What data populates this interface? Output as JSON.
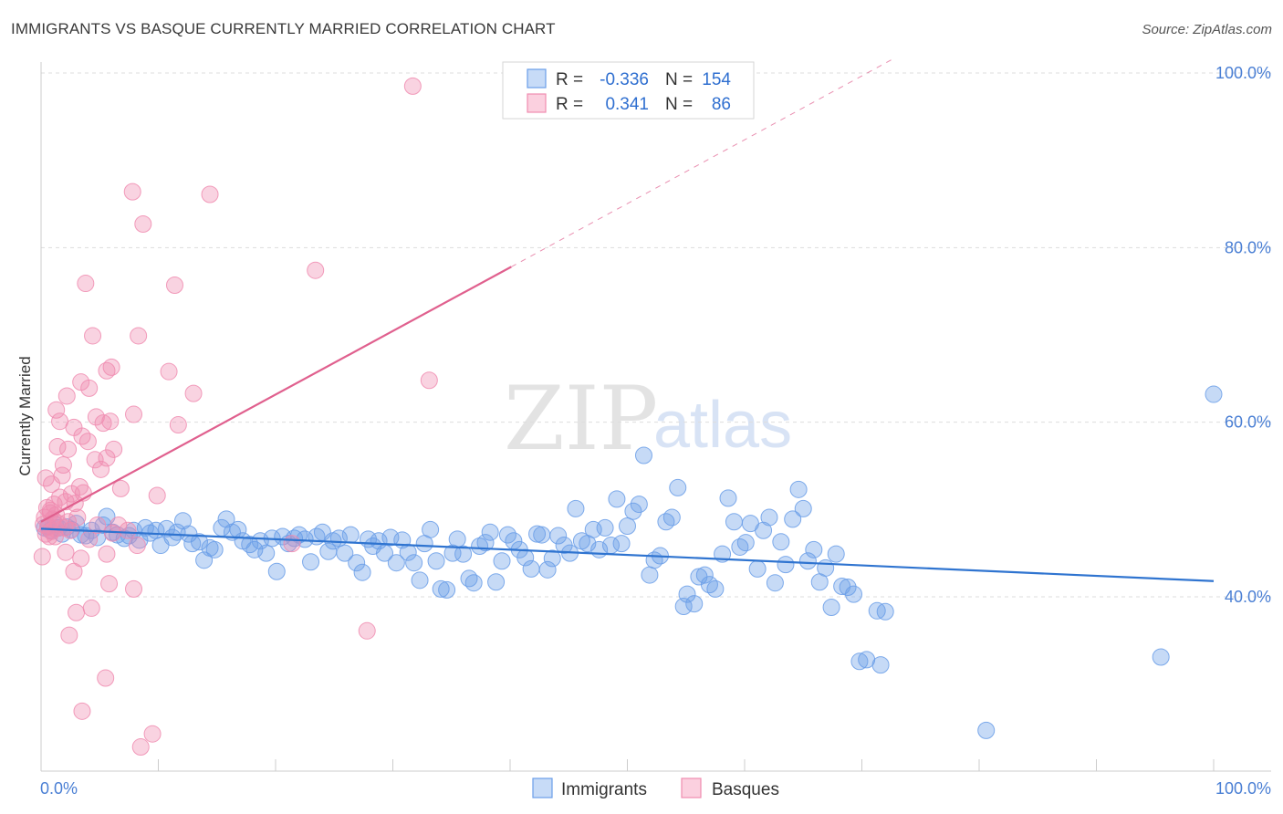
{
  "header": {
    "title": "IMMIGRANTS VS BASQUE CURRENTLY MARRIED CORRELATION CHART",
    "source": "Source: ZipAtlas.com"
  },
  "watermark": {
    "zip": "ZIP",
    "atlas": "atlas"
  },
  "colors": {
    "immigrants": "#6a9ee8",
    "immigrants_line": "#2f74d0",
    "basques": "#f08cb0",
    "basques_line": "#e0608e",
    "axis_label": "#4a7fd4"
  },
  "legend": {
    "rows": [
      {
        "r_label": "R =",
        "r_value": "-0.336",
        "n_label": "N =",
        "n_value": "154"
      },
      {
        "r_label": "R =",
        "r_value": "0.341",
        "n_label": "N =",
        "n_value": "86"
      }
    ]
  },
  "bottom_legend": {
    "immigrants": "Immigrants",
    "basques": "Basques"
  },
  "chart_data": {
    "type": "scatter",
    "title": "IMMIGRANTS VS BASQUE CURRENTLY MARRIED CORRELATION CHART",
    "xlabel": "",
    "ylabel": "Currently Married",
    "xlim": [
      0,
      100
    ],
    "ylim": [
      20,
      103
    ],
    "x_tick_labels": [
      "0.0%",
      "100.0%"
    ],
    "y_ticks": [
      40,
      60,
      80,
      100
    ],
    "y_tick_labels": [
      "40.0%",
      "60.0%",
      "80.0%",
      "100.0%"
    ],
    "grid": true,
    "series": [
      {
        "name": "Immigrants",
        "r": -0.336,
        "n": 154,
        "trend": {
          "x0": 0,
          "y0": 47.8,
          "x1": 100,
          "y1": 41.8,
          "dashed_from": null
        },
        "points": [
          [
            0.3,
            47.9
          ],
          [
            0.6,
            48.1
          ],
          [
            0.8,
            47.6
          ],
          [
            1.2,
            48.3
          ],
          [
            1.5,
            47.9
          ],
          [
            1.8,
            47.2
          ],
          [
            2.2,
            48.0
          ],
          [
            2.6,
            47.7
          ],
          [
            3.0,
            48.4
          ],
          [
            3.4,
            47.1
          ],
          [
            3.8,
            47.0
          ],
          [
            4.3,
            47.6
          ],
          [
            4.8,
            46.8
          ],
          [
            5.3,
            48.2
          ],
          [
            5.6,
            49.2
          ],
          [
            6.1,
            47.4
          ],
          [
            6.5,
            47.1
          ],
          [
            7.1,
            46.7
          ],
          [
            7.5,
            47.0
          ],
          [
            7.9,
            47.6
          ],
          [
            8.4,
            46.5
          ],
          [
            8.9,
            47.9
          ],
          [
            9.3,
            47.3
          ],
          [
            9.8,
            47.6
          ],
          [
            10.2,
            45.9
          ],
          [
            10.7,
            47.8
          ],
          [
            11.2,
            46.8
          ],
          [
            11.6,
            47.4
          ],
          [
            12.1,
            48.7
          ],
          [
            12.6,
            47.2
          ],
          [
            12.9,
            46.1
          ],
          [
            13.5,
            46.3
          ],
          [
            13.9,
            44.2
          ],
          [
            14.4,
            45.6
          ],
          [
            14.8,
            45.4
          ],
          [
            15.4,
            47.9
          ],
          [
            15.8,
            48.9
          ],
          [
            16.3,
            47.4
          ],
          [
            16.8,
            47.7
          ],
          [
            17.2,
            46.4
          ],
          [
            17.8,
            46.0
          ],
          [
            18.2,
            45.4
          ],
          [
            18.7,
            46.4
          ],
          [
            19.2,
            45.0
          ],
          [
            19.7,
            46.7
          ],
          [
            20.1,
            42.9
          ],
          [
            20.6,
            46.9
          ],
          [
            21.1,
            46.1
          ],
          [
            21.6,
            46.7
          ],
          [
            22.0,
            47.1
          ],
          [
            22.5,
            46.6
          ],
          [
            23.0,
            44.0
          ],
          [
            23.5,
            46.9
          ],
          [
            24.0,
            47.4
          ],
          [
            24.5,
            45.2
          ],
          [
            24.9,
            46.4
          ],
          [
            25.4,
            46.7
          ],
          [
            25.9,
            45.0
          ],
          [
            26.4,
            47.1
          ],
          [
            26.9,
            43.9
          ],
          [
            27.4,
            42.8
          ],
          [
            27.9,
            46.6
          ],
          [
            28.3,
            45.8
          ],
          [
            28.8,
            46.4
          ],
          [
            29.3,
            45.0
          ],
          [
            29.8,
            46.8
          ],
          [
            30.3,
            43.9
          ],
          [
            30.8,
            46.5
          ],
          [
            31.3,
            45.1
          ],
          [
            31.8,
            43.9
          ],
          [
            32.3,
            41.9
          ],
          [
            32.7,
            46.1
          ],
          [
            33.2,
            47.7
          ],
          [
            33.7,
            44.1
          ],
          [
            34.1,
            40.9
          ],
          [
            34.6,
            40.8
          ],
          [
            35.1,
            45.0
          ],
          [
            35.5,
            46.6
          ],
          [
            36.0,
            44.9
          ],
          [
            36.5,
            42.1
          ],
          [
            36.9,
            41.6
          ],
          [
            37.4,
            45.8
          ],
          [
            37.9,
            46.2
          ],
          [
            38.3,
            47.4
          ],
          [
            38.8,
            41.7
          ],
          [
            39.3,
            44.1
          ],
          [
            39.8,
            47.1
          ],
          [
            40.3,
            46.4
          ],
          [
            40.8,
            45.4
          ],
          [
            41.3,
            44.5
          ],
          [
            41.8,
            43.2
          ],
          [
            42.3,
            47.2
          ],
          [
            42.7,
            47.1
          ],
          [
            43.2,
            43.1
          ],
          [
            43.6,
            44.4
          ],
          [
            44.1,
            47.0
          ],
          [
            44.6,
            45.9
          ],
          [
            45.1,
            45.0
          ],
          [
            45.6,
            50.1
          ],
          [
            46.1,
            46.4
          ],
          [
            46.6,
            46.1
          ],
          [
            47.1,
            47.7
          ],
          [
            47.6,
            45.4
          ],
          [
            48.1,
            47.9
          ],
          [
            48.6,
            45.9
          ],
          [
            49.1,
            51.2
          ],
          [
            49.5,
            46.1
          ],
          [
            50.0,
            48.1
          ],
          [
            50.5,
            49.8
          ],
          [
            51.0,
            50.6
          ],
          [
            51.4,
            56.2
          ],
          [
            51.9,
            42.5
          ],
          [
            52.3,
            44.2
          ],
          [
            52.8,
            44.7
          ],
          [
            53.3,
            48.6
          ],
          [
            53.8,
            49.1
          ],
          [
            54.3,
            52.5
          ],
          [
            54.8,
            38.9
          ],
          [
            55.1,
            40.3
          ],
          [
            55.7,
            39.2
          ],
          [
            56.1,
            42.3
          ],
          [
            56.6,
            42.5
          ],
          [
            57.0,
            41.4
          ],
          [
            57.5,
            40.9
          ],
          [
            58.1,
            44.9
          ],
          [
            58.6,
            51.3
          ],
          [
            59.1,
            48.6
          ],
          [
            59.6,
            45.7
          ],
          [
            60.1,
            46.2
          ],
          [
            60.5,
            48.4
          ],
          [
            61.1,
            43.2
          ],
          [
            61.6,
            47.6
          ],
          [
            62.1,
            49.1
          ],
          [
            62.6,
            41.6
          ],
          [
            63.1,
            46.3
          ],
          [
            63.5,
            43.7
          ],
          [
            64.1,
            48.9
          ],
          [
            64.6,
            52.3
          ],
          [
            65.0,
            50.1
          ],
          [
            65.4,
            44.1
          ],
          [
            65.9,
            45.4
          ],
          [
            66.4,
            41.7
          ],
          [
            66.9,
            43.3
          ],
          [
            67.4,
            38.8
          ],
          [
            67.8,
            44.9
          ],
          [
            68.3,
            41.2
          ],
          [
            68.8,
            41.1
          ],
          [
            69.3,
            40.3
          ],
          [
            69.8,
            32.6
          ],
          [
            70.4,
            32.8
          ],
          [
            71.3,
            38.4
          ],
          [
            71.6,
            32.2
          ],
          [
            72.0,
            38.3
          ],
          [
            80.6,
            24.7
          ],
          [
            95.5,
            33.1
          ],
          [
            100.0,
            63.2
          ]
        ]
      },
      {
        "name": "Basques",
        "r": 0.341,
        "n": 86,
        "trend": {
          "x0": 0,
          "y0": 48.6,
          "x1": 40.1,
          "y1": 77.8,
          "dashed_to_x": 72.5,
          "dashed_to_y": 101.5
        },
        "points": [
          [
            0.1,
            44.6
          ],
          [
            0.2,
            48.3
          ],
          [
            0.3,
            49.1
          ],
          [
            0.4,
            47.2
          ],
          [
            0.5,
            50.2
          ],
          [
            0.6,
            48.0
          ],
          [
            0.7,
            46.9
          ],
          [
            0.8,
            49.6
          ],
          [
            0.9,
            47.5
          ],
          [
            1.0,
            48.9
          ],
          [
            1.1,
            50.6
          ],
          [
            1.2,
            47.8
          ],
          [
            1.3,
            49.4
          ],
          [
            0.4,
            53.6
          ],
          [
            0.9,
            52.9
          ],
          [
            1.6,
            51.4
          ],
          [
            1.8,
            53.9
          ],
          [
            2.1,
            50.9
          ],
          [
            2.3,
            48.6
          ],
          [
            2.6,
            51.8
          ],
          [
            2.9,
            50.7
          ],
          [
            3.1,
            49.1
          ],
          [
            3.3,
            52.6
          ],
          [
            3.6,
            51.9
          ],
          [
            1.4,
            57.2
          ],
          [
            1.9,
            55.1
          ],
          [
            2.3,
            56.9
          ],
          [
            2.8,
            59.4
          ],
          [
            3.5,
            58.4
          ],
          [
            4.0,
            57.8
          ],
          [
            4.6,
            55.7
          ],
          [
            5.1,
            54.6
          ],
          [
            5.6,
            55.9
          ],
          [
            6.2,
            56.9
          ],
          [
            1.6,
            60.1
          ],
          [
            1.3,
            61.4
          ],
          [
            2.2,
            63.0
          ],
          [
            3.4,
            64.6
          ],
          [
            4.1,
            63.9
          ],
          [
            4.7,
            60.6
          ],
          [
            5.3,
            59.9
          ],
          [
            5.9,
            60.1
          ],
          [
            7.9,
            60.9
          ],
          [
            4.4,
            69.9
          ],
          [
            5.6,
            65.9
          ],
          [
            6.0,
            66.3
          ],
          [
            8.3,
            69.9
          ],
          [
            10.9,
            65.8
          ],
          [
            11.7,
            59.7
          ],
          [
            13.0,
            63.3
          ],
          [
            3.8,
            75.9
          ],
          [
            11.4,
            75.7
          ],
          [
            8.7,
            82.7
          ],
          [
            7.8,
            86.4
          ],
          [
            14.4,
            86.1
          ],
          [
            23.4,
            77.4
          ],
          [
            31.7,
            98.5
          ],
          [
            33.1,
            64.8
          ],
          [
            1.2,
            46.9
          ],
          [
            2.5,
            47.6
          ],
          [
            3.4,
            44.4
          ],
          [
            4.1,
            46.6
          ],
          [
            4.8,
            48.2
          ],
          [
            5.6,
            44.9
          ],
          [
            6.1,
            47.3
          ],
          [
            6.6,
            48.2
          ],
          [
            7.4,
            47.6
          ],
          [
            8.2,
            45.9
          ],
          [
            2.1,
            45.1
          ],
          [
            2.8,
            42.9
          ],
          [
            3.0,
            38.2
          ],
          [
            4.3,
            38.7
          ],
          [
            5.8,
            41.5
          ],
          [
            7.9,
            40.9
          ],
          [
            2.4,
            35.6
          ],
          [
            3.5,
            26.9
          ],
          [
            5.5,
            30.7
          ],
          [
            8.5,
            22.8
          ],
          [
            9.5,
            24.3
          ],
          [
            21.4,
            46.1
          ],
          [
            27.8,
            36.1
          ],
          [
            0.8,
            49.9
          ],
          [
            1.5,
            48.4
          ],
          [
            2.0,
            47.9
          ],
          [
            6.8,
            52.4
          ],
          [
            9.9,
            51.6
          ]
        ]
      }
    ]
  }
}
